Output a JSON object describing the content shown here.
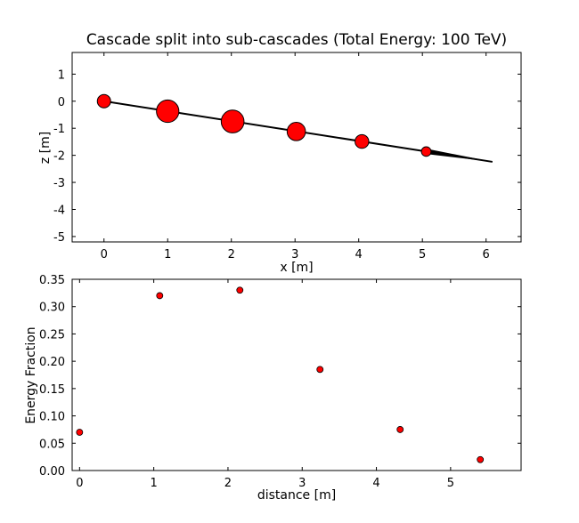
{
  "chart_data": [
    {
      "type": "scatter",
      "title": "Cascade split into sub-cascades (Total Energy: 100 TeV)",
      "xlabel": "x [m]",
      "ylabel": "z [m]",
      "xlim": [
        -0.5,
        6.55
      ],
      "ylim": [
        -5.2,
        1.8
      ],
      "xticks": [
        "0",
        "1",
        "2",
        "3",
        "4",
        "5",
        "6"
      ],
      "yticks": [
        "1",
        "0",
        "-1",
        "-2",
        "-3",
        "-4",
        "-5"
      ],
      "grid": false,
      "line": {
        "x": [
          0,
          6.1
        ],
        "y": [
          0,
          -2.24
        ]
      },
      "arrow_head": {
        "x": 5.05,
        "y": -1.85
      },
      "series": [
        {
          "x": [
            0,
            1.0,
            2.02,
            3.02,
            4.05,
            5.06
          ],
          "y": [
            0,
            -0.37,
            -0.75,
            -1.12,
            -1.49,
            -1.86
          ],
          "energy_fraction": [
            0.07,
            0.32,
            0.33,
            0.185,
            0.075,
            0.02
          ],
          "color": "#ff0000"
        }
      ]
    },
    {
      "type": "scatter",
      "title": "",
      "xlabel": "distance [m]",
      "ylabel": "Energy Fraction",
      "xlim": [
        -0.1,
        5.95
      ],
      "ylim": [
        0.0,
        0.35
      ],
      "xticks": [
        "0",
        "1",
        "2",
        "3",
        "4",
        "5"
      ],
      "yticks": [
        "0.35",
        "0.30",
        "0.25",
        "0.20",
        "0.15",
        "0.10",
        "0.05",
        "0.00"
      ],
      "grid": false,
      "series": [
        {
          "x": [
            0.0,
            1.08,
            2.16,
            3.24,
            4.32,
            5.4
          ],
          "y": [
            0.07,
            0.32,
            0.33,
            0.185,
            0.075,
            0.02
          ],
          "color": "#ff0000"
        }
      ]
    }
  ]
}
